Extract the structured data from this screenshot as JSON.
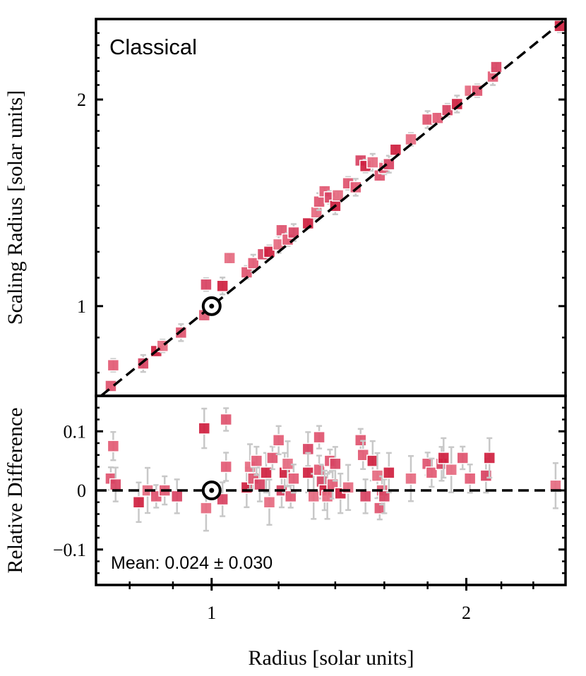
{
  "chart_data": [
    {
      "type": "scatter",
      "panel": "top",
      "annotation": "Classical",
      "xlabel": "Radius [solar units]",
      "ylabel": "Scaling Radius [solar units]",
      "xscale": "log",
      "yscale": "log",
      "xlim": [
        0.73,
        2.62
      ],
      "ylim": [
        0.74,
        2.62
      ],
      "yticks": [
        {
          "value": 1,
          "label": "1"
        },
        {
          "value": 2,
          "label": "2"
        }
      ],
      "reference_line": "y = x (dashed)",
      "sun_marker": {
        "x": 1.0,
        "y": 1.0,
        "label": "Sun"
      },
      "points": [
        [
          0.76,
          0.765
        ],
        [
          0.765,
          0.82
        ],
        [
          0.83,
          0.825
        ],
        [
          0.86,
          0.86
        ],
        [
          0.875,
          0.875
        ],
        [
          0.92,
          0.915
        ],
        [
          0.98,
          0.97
        ],
        [
          0.985,
          1.075
        ],
        [
          1.03,
          1.07
        ],
        [
          1.05,
          1.175
        ],
        [
          1.1,
          1.12
        ],
        [
          1.12,
          1.155
        ],
        [
          1.15,
          1.19
        ],
        [
          1.17,
          1.2
        ],
        [
          1.2,
          1.23
        ],
        [
          1.21,
          1.29
        ],
        [
          1.23,
          1.25
        ],
        [
          1.25,
          1.28
        ],
        [
          1.3,
          1.32
        ],
        [
          1.33,
          1.37
        ],
        [
          1.34,
          1.42
        ],
        [
          1.36,
          1.47
        ],
        [
          1.38,
          1.44
        ],
        [
          1.4,
          1.4
        ],
        [
          1.41,
          1.45
        ],
        [
          1.45,
          1.51
        ],
        [
          1.48,
          1.49
        ],
        [
          1.5,
          1.63
        ],
        [
          1.52,
          1.6
        ],
        [
          1.55,
          1.62
        ],
        [
          1.58,
          1.55
        ],
        [
          1.6,
          1.59
        ],
        [
          1.62,
          1.61
        ],
        [
          1.65,
          1.69
        ],
        [
          1.72,
          1.75
        ],
        [
          1.8,
          1.87
        ],
        [
          1.85,
          1.88
        ],
        [
          1.9,
          1.93
        ],
        [
          1.95,
          1.97
        ],
        [
          2.02,
          2.06
        ],
        [
          2.06,
          2.06
        ],
        [
          2.15,
          2.16
        ],
        [
          2.17,
          2.23
        ],
        [
          2.58,
          2.56
        ]
      ]
    },
    {
      "type": "scatter",
      "panel": "bottom",
      "ylabel": "Relative Difference",
      "xlabel": "Radius [solar units]",
      "xlim": [
        0.73,
        2.62
      ],
      "ylim": [
        -0.16,
        0.16
      ],
      "xticks": [
        {
          "value": 1,
          "label": "1"
        },
        {
          "value": 2,
          "label": "2"
        }
      ],
      "yticks": [
        {
          "value": 0.1,
          "label": "0.1"
        },
        {
          "value": 0,
          "label": "0"
        },
        {
          "value": -0.1,
          "label": "−0.1"
        }
      ],
      "reference_line": "y = 0 (dashed)",
      "annotation": "Mean: 0.024 ± 0.030",
      "sun_marker": {
        "x": 1.0,
        "y": 0.0,
        "label": "Sun"
      },
      "points": [
        [
          0.76,
          0.02
        ],
        [
          0.765,
          0.075
        ],
        [
          0.77,
          0.01
        ],
        [
          0.82,
          -0.02
        ],
        [
          0.84,
          0.0
        ],
        [
          0.86,
          -0.01
        ],
        [
          0.88,
          0.0
        ],
        [
          0.91,
          -0.01
        ],
        [
          0.98,
          0.105
        ],
        [
          0.985,
          -0.03
        ],
        [
          1.04,
          0.12
        ],
        [
          1.04,
          0.04
        ],
        [
          1.03,
          -0.015
        ],
        [
          1.1,
          0.005
        ],
        [
          1.11,
          0.04
        ],
        [
          1.12,
          0.02
        ],
        [
          1.13,
          0.05
        ],
        [
          1.14,
          0.01
        ],
        [
          1.16,
          0.03
        ],
        [
          1.17,
          -0.02
        ],
        [
          1.18,
          0.055
        ],
        [
          1.2,
          0.085
        ],
        [
          1.21,
          0.0
        ],
        [
          1.22,
          0.03
        ],
        [
          1.23,
          0.045
        ],
        [
          1.24,
          -0.01
        ],
        [
          1.25,
          0.02
        ],
        [
          1.3,
          0.07
        ],
        [
          1.3,
          0.03
        ],
        [
          1.32,
          -0.01
        ],
        [
          1.34,
          0.09
        ],
        [
          1.34,
          0.035
        ],
        [
          1.35,
          0.015
        ],
        [
          1.36,
          0.0
        ],
        [
          1.37,
          -0.01
        ],
        [
          1.38,
          0.05
        ],
        [
          1.39,
          0.01
        ],
        [
          1.4,
          0.045
        ],
        [
          1.42,
          -0.005
        ],
        [
          1.45,
          0.005
        ],
        [
          1.5,
          0.085
        ],
        [
          1.51,
          0.06
        ],
        [
          1.52,
          -0.01
        ],
        [
          1.55,
          0.05
        ],
        [
          1.57,
          0.025
        ],
        [
          1.58,
          -0.03
        ],
        [
          1.59,
          0.0
        ],
        [
          1.6,
          -0.01
        ],
        [
          1.62,
          0.03
        ],
        [
          1.72,
          0.02
        ],
        [
          1.8,
          0.045
        ],
        [
          1.82,
          0.03
        ],
        [
          1.87,
          0.045
        ],
        [
          1.88,
          0.055
        ],
        [
          1.92,
          0.035
        ],
        [
          1.98,
          0.055
        ],
        [
          2.02,
          0.02
        ],
        [
          2.11,
          0.025
        ],
        [
          2.13,
          0.055
        ],
        [
          2.55,
          0.008
        ]
      ]
    }
  ]
}
